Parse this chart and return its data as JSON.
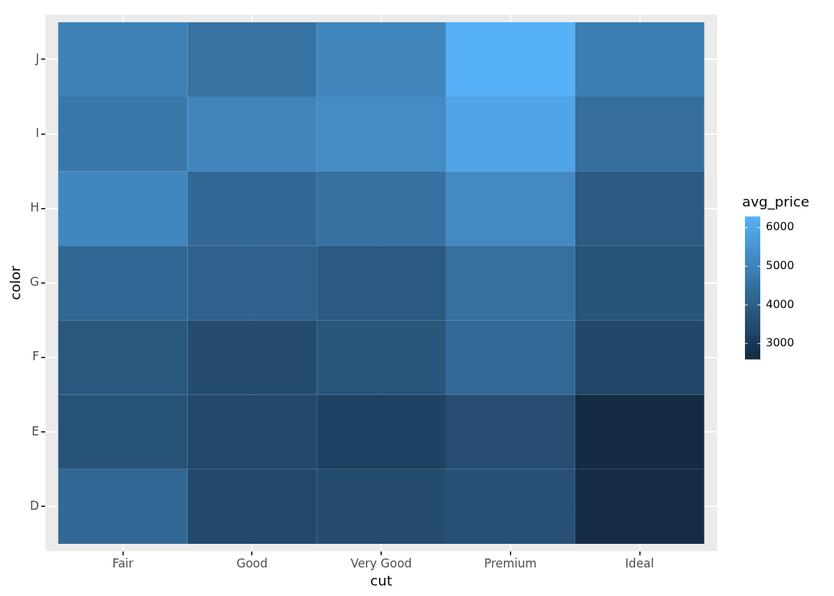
{
  "chart_data": {
    "type": "heatmap",
    "xlabel": "cut",
    "ylabel": "color",
    "clabel": "avg_price",
    "categories": [
      "Fair",
      "Good",
      "Very Good",
      "Premium",
      "Ideal"
    ],
    "y_categories": [
      "J",
      "I",
      "H",
      "G",
      "F",
      "E",
      "D"
    ],
    "cells": [
      [
        4980,
        4570,
        5100,
        6290,
        4920
      ],
      [
        4690,
        5080,
        5260,
        5950,
        4450
      ],
      [
        5140,
        4280,
        4540,
        5220,
        3890
      ],
      [
        4240,
        4120,
        3870,
        4500,
        3720
      ],
      [
        3830,
        3500,
        3780,
        4320,
        3370
      ],
      [
        3680,
        3420,
        3220,
        3540,
        2600
      ],
      [
        4290,
        3410,
        3470,
        3630,
        2630
      ]
    ],
    "clim": [
      2600,
      6290
    ],
    "cticks": [
      3000,
      4000,
      5000,
      6000
    ],
    "colors": [
      "#132b43",
      "#56b1f7"
    ],
    "grid": true
  }
}
